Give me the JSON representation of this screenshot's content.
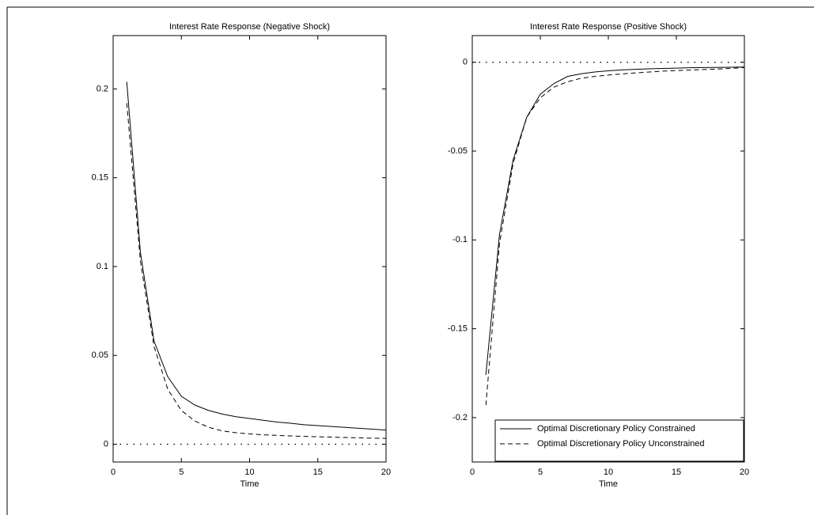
{
  "chart_data": [
    {
      "type": "line",
      "title": "Interest Rate Response (Negative Shock)",
      "x_label": "Time",
      "x": [
        1,
        2,
        3,
        4,
        5,
        6,
        7,
        8,
        9,
        10,
        11,
        12,
        13,
        14,
        15,
        16,
        17,
        18,
        19,
        20
      ],
      "series": [
        {
          "color": "#000000",
          "style": "solid",
          "values": [
            0.204,
            0.108,
            0.058,
            0.038,
            0.027,
            0.022,
            0.019,
            0.017,
            0.0155,
            0.0145,
            0.0135,
            0.0125,
            0.0118,
            0.011,
            0.0105,
            0.01,
            0.0095,
            0.009,
            0.0085,
            0.008
          ]
        },
        {
          "color": "#000000",
          "style": "dashed",
          "values": [
            0.192,
            0.103,
            0.055,
            0.031,
            0.019,
            0.013,
            0.0095,
            0.0075,
            0.0065,
            0.0058,
            0.0053,
            0.005,
            0.0047,
            0.0044,
            0.0042,
            0.004,
            0.0038,
            0.0036,
            0.0034,
            0.0033
          ]
        }
      ],
      "hlines": [
        0
      ],
      "xlim": [
        0,
        20
      ],
      "xticks": [
        0,
        5,
        10,
        15,
        20
      ],
      "ylim": [
        -0.01,
        0.23
      ],
      "yticks": [
        0,
        0.05,
        0.1,
        0.15,
        0.2
      ]
    },
    {
      "type": "line",
      "title": "Interest Rate Response (Positive Shock)",
      "x_label": "Time",
      "x": [
        1,
        2,
        3,
        4,
        5,
        6,
        7,
        8,
        9,
        10,
        11,
        12,
        13,
        14,
        15,
        16,
        17,
        18,
        19,
        20
      ],
      "series": [
        {
          "name": "Optimal Discretionary Policy Constrained",
          "color": "#000000",
          "style": "solid",
          "values": [
            -0.176,
            -0.097,
            -0.055,
            -0.031,
            -0.018,
            -0.012,
            -0.008,
            -0.0065,
            -0.0055,
            -0.0048,
            -0.0043,
            -0.004,
            -0.0037,
            -0.0035,
            -0.0033,
            -0.0031,
            -0.003,
            -0.0029,
            -0.0028,
            -0.0027
          ]
        },
        {
          "name": "Optimal Discretionary Policy Unconstrained",
          "color": "#000000",
          "style": "dashed",
          "values": [
            -0.193,
            -0.102,
            -0.057,
            -0.031,
            -0.02,
            -0.014,
            -0.011,
            -0.009,
            -0.008,
            -0.0072,
            -0.0066,
            -0.006,
            -0.0055,
            -0.005,
            -0.0047,
            -0.0044,
            -0.0041,
            -0.0038,
            -0.0035,
            -0.003
          ]
        }
      ],
      "hlines": [
        0
      ],
      "legend": "lower right",
      "xlim": [
        0,
        20
      ],
      "xticks": [
        0,
        5,
        10,
        15,
        20
      ],
      "ylim": [
        -0.225,
        0.015
      ],
      "yticks": [
        0,
        -0.05,
        -0.1,
        -0.15,
        -0.2
      ]
    }
  ]
}
